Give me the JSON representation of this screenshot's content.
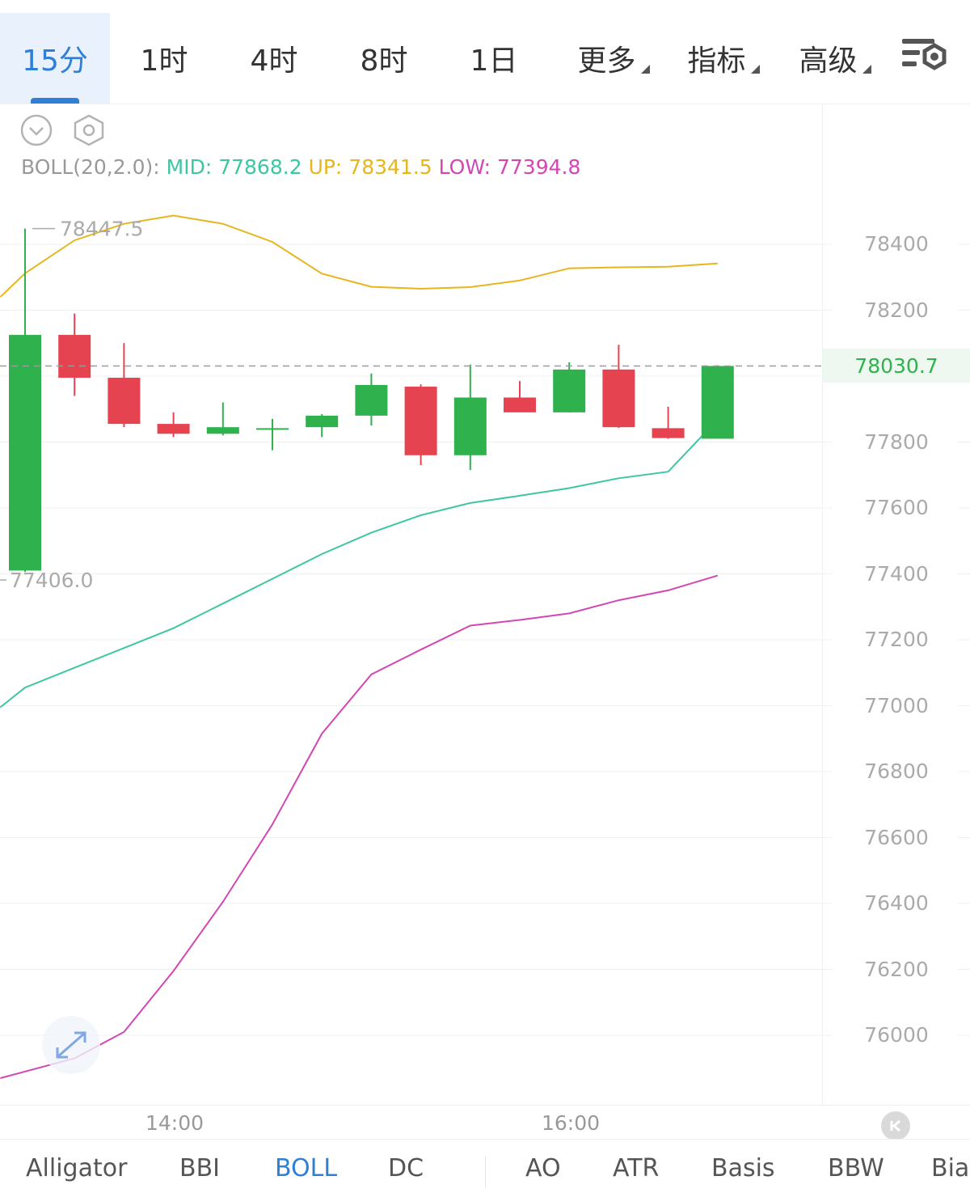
{
  "timeframe_tabs": [
    {
      "label": "15分",
      "active": true
    },
    {
      "label": "1时"
    },
    {
      "label": "4时"
    },
    {
      "label": "8时"
    },
    {
      "label": "1日"
    },
    {
      "label": "更多",
      "dropdown": true
    },
    {
      "label": "指标",
      "dropdown": true
    },
    {
      "label": "高级",
      "dropdown": true
    }
  ],
  "indicator": {
    "name": "BOLL(20,2.0):",
    "mid": "MID: 77868.2",
    "up": "UP: 78341.5",
    "low": "LOW: 77394.8"
  },
  "colors": {
    "up_candle": "#2fb14d",
    "down_candle": "#e5434f",
    "mid_line": "#3ec6a3",
    "upper_band": "#e6b61e",
    "lower_band": "#d247b3",
    "accent": "#2f7fd6"
  },
  "icons": [
    "chevron-down-icon",
    "hexagon-settings-icon",
    "chart-settings-icon",
    "expand-arrows-icon",
    "go-to-latest-icon"
  ],
  "current_price": "78030.7",
  "bottom_tabs": [
    {
      "label": "Alligator"
    },
    {
      "label": "BBI"
    },
    {
      "label": "BOLL",
      "active": true
    },
    {
      "label": "DC"
    },
    {
      "label": "AO"
    },
    {
      "label": "ATR"
    },
    {
      "label": "Basis"
    },
    {
      "label": "BBW"
    },
    {
      "label": "Bias"
    }
  ],
  "chart_data": {
    "type": "candlestick",
    "y_ticks": [
      "78400",
      "78200",
      "77800",
      "77600",
      "77400",
      "77200",
      "77000",
      "76800",
      "76600",
      "76400",
      "76200",
      "76000"
    ],
    "x_ticks": [
      "14:00",
      "16:00"
    ],
    "high_label": "78447.5",
    "low_label": "77406.0",
    "grid": "horizontal",
    "candles": [
      {
        "o": 77410,
        "h": 78447.5,
        "l": 77406.0,
        "c": 78125
      },
      {
        "o": 78125,
        "h": 78190,
        "l": 77940,
        "c": 77995
      },
      {
        "o": 77995,
        "h": 78100,
        "l": 77845,
        "c": 77855
      },
      {
        "o": 77855,
        "h": 77890,
        "l": 77815,
        "c": 77825
      },
      {
        "o": 77825,
        "h": 77920,
        "l": 77820,
        "c": 77845
      },
      {
        "o": 77840,
        "h": 77870,
        "l": 77775,
        "c": 77842
      },
      {
        "o": 77845,
        "h": 77885,
        "l": 77815,
        "c": 77880
      },
      {
        "o": 77880,
        "h": 78008,
        "l": 77850,
        "c": 77973
      },
      {
        "o": 77968,
        "h": 77975,
        "l": 77730,
        "c": 77760
      },
      {
        "o": 77760,
        "h": 78035,
        "l": 77715,
        "c": 77935
      },
      {
        "o": 77935,
        "h": 77985,
        "l": 77895,
        "c": 77890
      },
      {
        "o": 77890,
        "h": 78042,
        "l": 77890,
        "c": 78020
      },
      {
        "o": 78020,
        "h": 78095,
        "l": 77843,
        "c": 77845
      },
      {
        "o": 77842,
        "h": 77907,
        "l": 77810,
        "c": 77812
      },
      {
        "o": 77810,
        "h": 78033,
        "l": 77810,
        "c": 78030.7
      }
    ],
    "upper_band": [
      {
        "x": -0.5,
        "y": 78240
      },
      {
        "x": 0,
        "y": 78312
      },
      {
        "x": 1,
        "y": 78412
      },
      {
        "x": 2,
        "y": 78462
      },
      {
        "x": 3,
        "y": 78487
      },
      {
        "x": 4,
        "y": 78462
      },
      {
        "x": 5,
        "y": 78407
      },
      {
        "x": 6,
        "y": 78311
      },
      {
        "x": 7,
        "y": 78271
      },
      {
        "x": 8,
        "y": 78265
      },
      {
        "x": 9,
        "y": 78270
      },
      {
        "x": 10,
        "y": 78290
      },
      {
        "x": 11,
        "y": 78327
      },
      {
        "x": 12,
        "y": 78330
      },
      {
        "x": 13,
        "y": 78332
      },
      {
        "x": 14,
        "y": 78341.5
      }
    ],
    "mid_line": [
      {
        "x": -0.5,
        "y": 76995
      },
      {
        "x": 0,
        "y": 77055
      },
      {
        "x": 1,
        "y": 77115
      },
      {
        "x": 2,
        "y": 77175
      },
      {
        "x": 3,
        "y": 77235
      },
      {
        "x": 4,
        "y": 77310
      },
      {
        "x": 5,
        "y": 77385
      },
      {
        "x": 6,
        "y": 77460
      },
      {
        "x": 7,
        "y": 77525
      },
      {
        "x": 8,
        "y": 77578
      },
      {
        "x": 9,
        "y": 77615
      },
      {
        "x": 10,
        "y": 77637
      },
      {
        "x": 11,
        "y": 77660
      },
      {
        "x": 12,
        "y": 77690
      },
      {
        "x": 13,
        "y": 77710
      },
      {
        "x": 14,
        "y": 77868.2
      }
    ],
    "lower_band": [
      {
        "x": -0.5,
        "y": 75870
      },
      {
        "x": 0,
        "y": 75890
      },
      {
        "x": 1,
        "y": 75930
      },
      {
        "x": 2,
        "y": 76010
      },
      {
        "x": 3,
        "y": 76195
      },
      {
        "x": 4,
        "y": 76405
      },
      {
        "x": 5,
        "y": 76640
      },
      {
        "x": 6,
        "y": 76915
      },
      {
        "x": 7,
        "y": 77095
      },
      {
        "x": 8,
        "y": 77170
      },
      {
        "x": 9,
        "y": 77243
      },
      {
        "x": 10,
        "y": 77260
      },
      {
        "x": 11,
        "y": 77280
      },
      {
        "x": 12,
        "y": 77320
      },
      {
        "x": 13,
        "y": 77350
      },
      {
        "x": 14,
        "y": 77394.8
      }
    ]
  }
}
